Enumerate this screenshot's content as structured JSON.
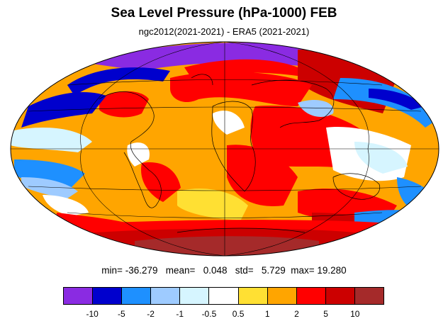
{
  "title": "Sea Level Pressure (hPa-1000) FEB",
  "subtitle": "ngc2012(2021-2021) - ERA5 (2021-2021)",
  "stats": {
    "min_label": "min=",
    "min": "-36.279",
    "mean_label": "mean=",
    "mean": "0.048",
    "std_label": "std=",
    "std": "5.729",
    "max_label": "max=",
    "max": "19.280"
  },
  "colorbar": {
    "colors": [
      "#8a2be2",
      "#0000cd",
      "#1e90ff",
      "#9ecbff",
      "#d6f5ff",
      "#ffffff",
      "#ffe033",
      "#ffa500",
      "#ff0000",
      "#cc0000",
      "#a52a2a"
    ],
    "tick_labels": [
      "-10",
      "-5",
      "-2",
      "-1",
      "-0.5",
      "0.5",
      "1",
      "2",
      "5",
      "10"
    ]
  },
  "map": {
    "projection": "mollweide",
    "background_field": "#ffa500"
  }
}
